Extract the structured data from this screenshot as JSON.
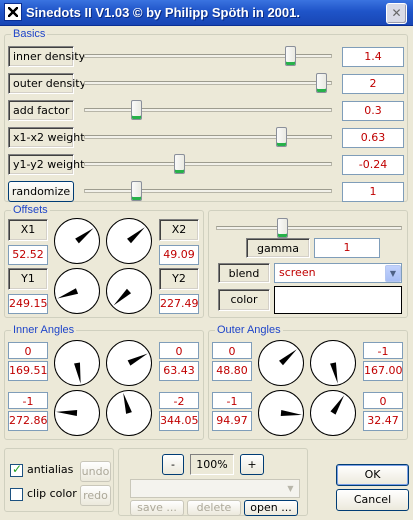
{
  "window": {
    "title": "Sinedots II V1.03 © by Philipp Spöth in 2001.",
    "close_label": "✕"
  },
  "basics": {
    "title": "Basics",
    "rows": [
      {
        "label": "inner density",
        "value": "1.4",
        "slider": 0.85
      },
      {
        "label": "outer density",
        "value": "2",
        "slider": 0.98
      },
      {
        "label": "add factor",
        "value": "0.3",
        "slider": 0.2
      },
      {
        "label": "x1-x2 weight",
        "value": "0.63",
        "slider": 0.81
      },
      {
        "label": "y1-y2 weight",
        "value": "-0.24",
        "slider": 0.38
      }
    ],
    "randomize": {
      "label": "randomize",
      "value": "1",
      "slider": 0.2
    }
  },
  "offsets": {
    "title": "Offsets",
    "x1": {
      "label": "X1",
      "value": "52.52"
    },
    "x2": {
      "label": "X2",
      "value": "49.09"
    },
    "y1": {
      "label": "Y1",
      "value": "249.15"
    },
    "y2": {
      "label": "Y2",
      "value": "227.49"
    }
  },
  "effects": {
    "gamma_label": "gamma",
    "gamma_value": "1",
    "gamma_slider": 0.35,
    "blend_label": "blend",
    "blend_value": "screen",
    "color_label": "color",
    "color_value": ""
  },
  "inner_angles": {
    "title": "Inner Angles",
    "a": {
      "top": "0",
      "value": "169.51"
    },
    "b": {
      "top": "0",
      "value": "63.43"
    },
    "c": {
      "top": "-1",
      "value": "272.86"
    },
    "d": {
      "top": "-2",
      "value": "344.05"
    }
  },
  "outer_angles": {
    "title": "Outer Angles",
    "a": {
      "top": "0",
      "value": "48.80"
    },
    "b": {
      "top": "-1",
      "value": "167.00"
    },
    "c": {
      "top": "-1",
      "value": "94.97"
    },
    "d": {
      "top": "0",
      "value": "32.47"
    }
  },
  "options": {
    "antialias": {
      "label": "antialias",
      "checked": true
    },
    "clip_color": {
      "label": "clip color",
      "checked": false
    }
  },
  "history": {
    "undo": "undo",
    "redo": "redo"
  },
  "zoom": {
    "minus": "-",
    "value": "100%",
    "plus": "+"
  },
  "presets": {
    "save": "save ...",
    "delete": "delete",
    "open": "open ..."
  },
  "dialog": {
    "ok": "OK",
    "cancel": "Cancel"
  },
  "colors": {
    "title_bar": "#1f54c8",
    "group_title": "#1f45c9",
    "value_text": "#c00000",
    "blend_value_text": "#c00000"
  }
}
